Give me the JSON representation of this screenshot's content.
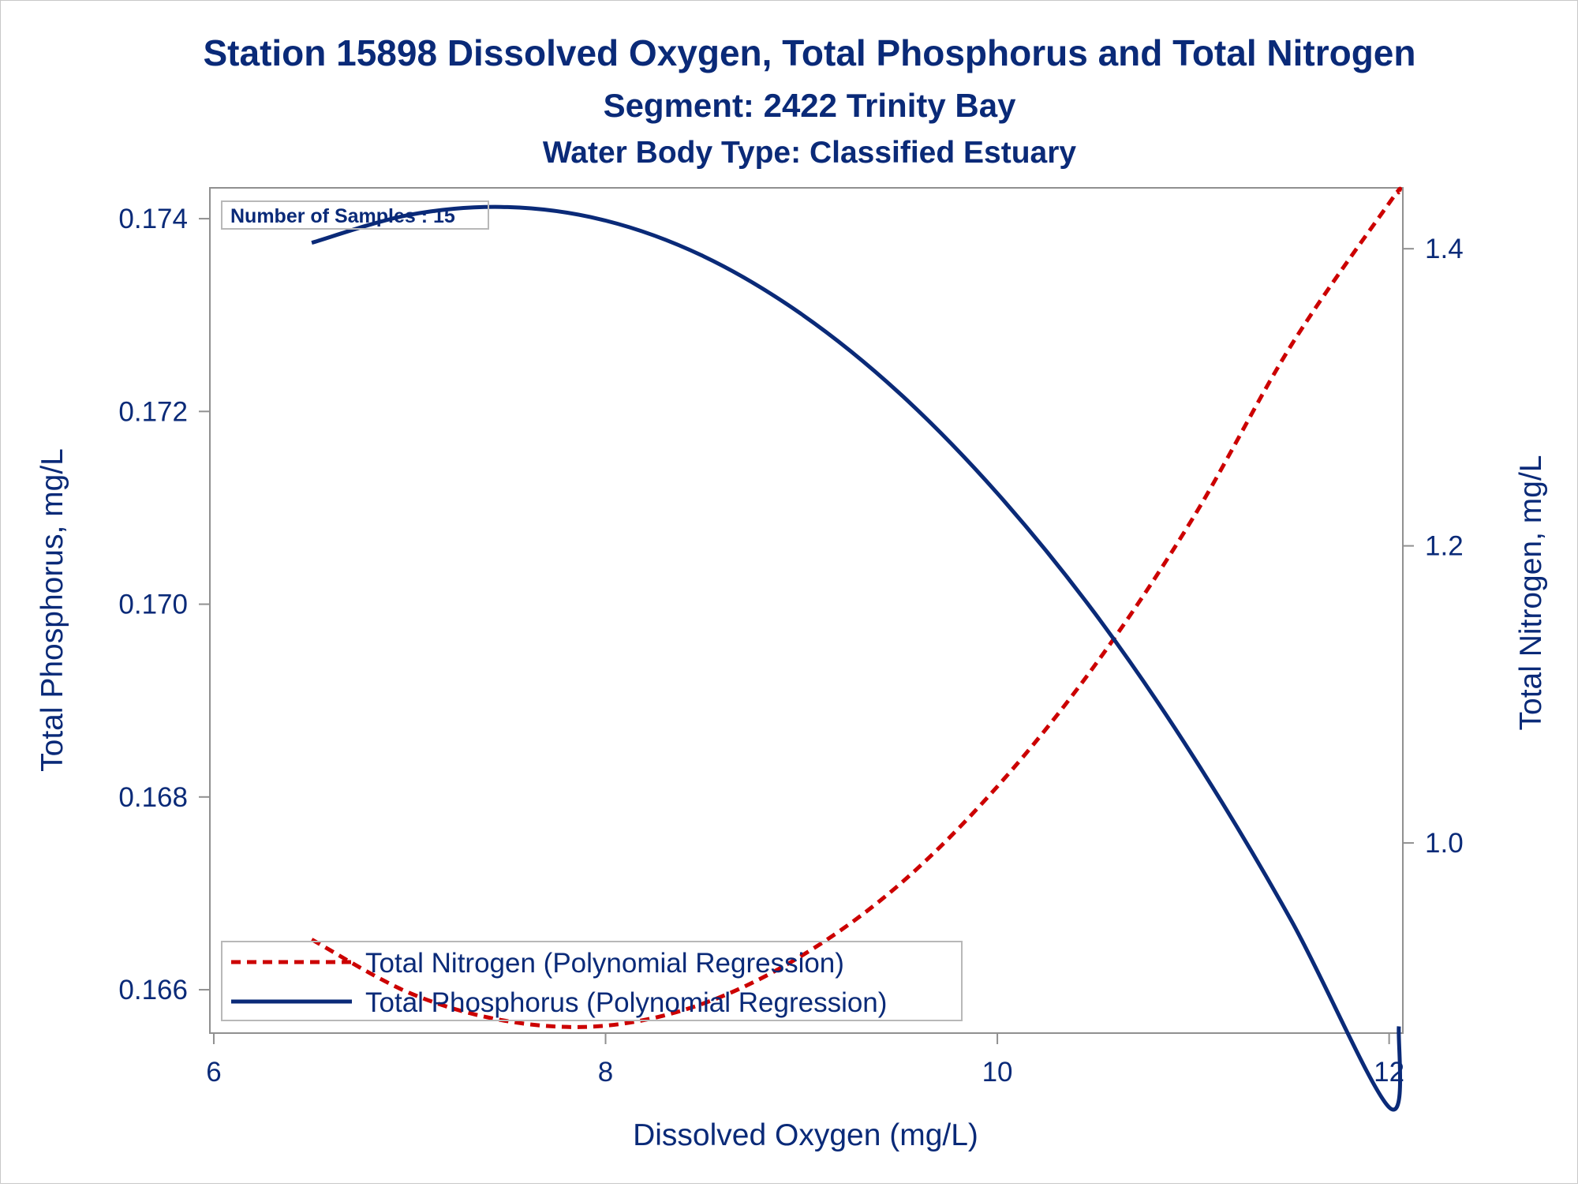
{
  "colors": {
    "text": "#0a2a78",
    "phosphorus": "#0a2a78",
    "nitrogen": "#cc0000",
    "frame": "#909090"
  },
  "chart_data": {
    "type": "line",
    "title": "Station 15898  Dissolved Oxygen, Total Phosphorus and Total Nitrogen",
    "subtitle": "Segment: 2422  Trinity Bay",
    "subtitle2": "Water Body Type: Classified Estuary",
    "xlabel": "Dissolved Oxygen (mg/L)",
    "ylabel_left": "Total Phosphorus, mg/L",
    "ylabel_right": "Total Nitrogen, mg/L",
    "xlim": [
      5.98,
      12.07
    ],
    "ylim_left": [
      0.16555,
      0.17432
    ],
    "ylim_right": [
      0.872,
      1.441
    ],
    "x_ticks": [
      6,
      8,
      10,
      12
    ],
    "x_tick_labels": [
      "6",
      "8",
      "10",
      "12"
    ],
    "y_left_ticks": [
      0.166,
      0.168,
      0.17,
      0.172,
      0.174
    ],
    "y_left_tick_labels": [
      "0.166",
      "0.168",
      "0.170",
      "0.172",
      "0.174"
    ],
    "y_right_ticks": [
      1.0,
      1.2,
      1.4
    ],
    "y_right_tick_labels": [
      "1.0",
      "1.2",
      "1.4"
    ],
    "annotation": "Number of Samples : 15",
    "grid": false,
    "legend_position": "bottom-left",
    "series": [
      {
        "name": "Total Nitrogen (Polynomial Regression)",
        "axis": "right",
        "style": "dashed",
        "color": "#cc0000",
        "x": [
          6.5,
          7.0,
          7.5,
          8.0,
          8.5,
          9.0,
          9.5,
          10.0,
          10.5,
          11.0,
          11.5,
          12.0,
          12.05
        ],
        "y": [
          0.935,
          0.899,
          0.88,
          0.877,
          0.892,
          0.924,
          0.972,
          1.038,
          1.12,
          1.219,
          1.335,
          1.4307,
          1.438
        ]
      },
      {
        "name": "Total Phosphorus (Polynomial Regression)",
        "axis": "left",
        "style": "solid",
        "color": "#0a2a78",
        "x": [
          6.5,
          7.0,
          7.5,
          8.0,
          8.5,
          9.0,
          9.5,
          10.0,
          10.5,
          11.0,
          11.5,
          12.0,
          12.05
        ],
        "y": [
          0.17375,
          0.17404,
          0.17412,
          0.17398,
          0.17361,
          0.17301,
          0.17219,
          0.17115,
          0.1699,
          0.16842,
          0.16672,
          0.16478,
          0.16562
        ]
      }
    ]
  }
}
